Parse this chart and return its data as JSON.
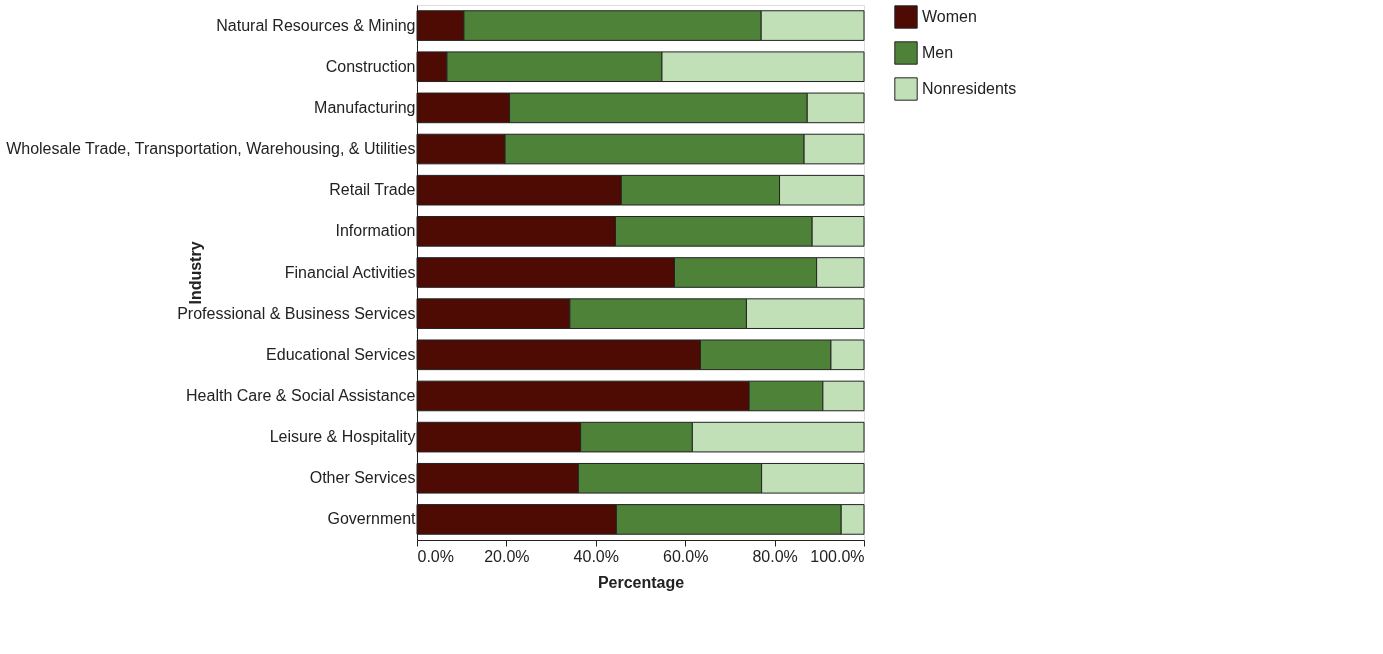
{
  "chart_data": {
    "type": "bar",
    "orientation": "horizontal",
    "stacked": true,
    "xlabel": "Percentage",
    "ylabel": "Industry",
    "categories": [
      "Natural Resources & Mining",
      "Construction",
      "Manufacturing",
      "Wholesale Trade, Transportation, Warehousing, & Utilities",
      "Retail Trade",
      "Information",
      "Financial Activities",
      "Professional & Business Services",
      "Educational Services",
      "Health Care & Social Assistance",
      "Leisure & Hospitality",
      "Other Services",
      "Government"
    ],
    "series": [
      {
        "name": "Women",
        "color": "#4d0b04",
        "values": [
          10.5,
          6.7,
          20.7,
          19.7,
          45.7,
          44.4,
          57.6,
          34.2,
          63.4,
          74.3,
          36.6,
          36.1,
          44.6
        ]
      },
      {
        "name": "Men",
        "color": "#4e8239",
        "values": [
          66.5,
          48.1,
          66.6,
          66.9,
          35.4,
          44.0,
          31.8,
          39.5,
          29.2,
          16.5,
          25.0,
          41.0,
          50.3
        ]
      },
      {
        "name": "Nonresidents",
        "color": "#c2e0b7",
        "values": [
          23.0,
          45.2,
          12.7,
          13.4,
          18.9,
          11.6,
          10.6,
          26.3,
          7.4,
          9.2,
          38.4,
          22.9,
          5.1
        ]
      }
    ],
    "xlim": [
      0,
      100
    ],
    "xticks": [
      {
        "value": 0,
        "label": "0.0%"
      },
      {
        "value": 20,
        "label": "20.0%"
      },
      {
        "value": 40,
        "label": "40.0%"
      },
      {
        "value": 60,
        "label": "60.0%"
      },
      {
        "value": 80,
        "label": "80.0%"
      },
      {
        "value": 100,
        "label": "100.0%"
      }
    ],
    "grid": false,
    "legend": "right"
  }
}
